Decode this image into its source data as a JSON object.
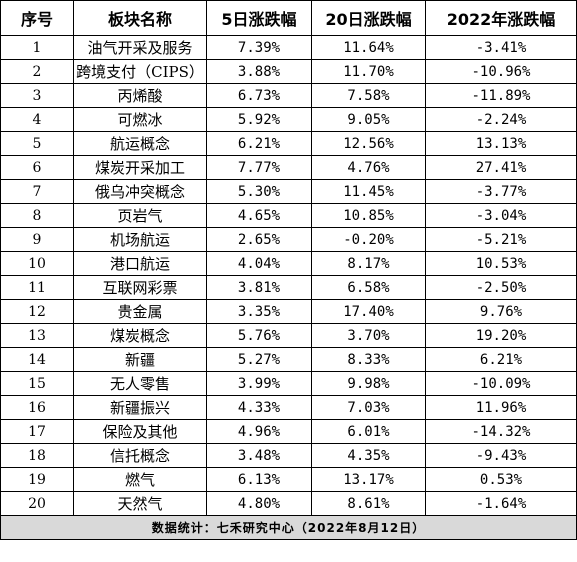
{
  "headers": [
    "序号",
    "板块名称",
    "5日涨跌幅",
    "20日涨跌幅",
    "2022年涨跌幅"
  ],
  "rows": [
    [
      "1",
      "油气开采及服务",
      "7.39%",
      "11.64%",
      "-3.41%"
    ],
    [
      "2",
      "跨境支付（CIPS）",
      "3.88%",
      "11.70%",
      "-10.96%"
    ],
    [
      "3",
      "丙烯酸",
      "6.73%",
      "7.58%",
      "-11.89%"
    ],
    [
      "4",
      "可燃冰",
      "5.92%",
      "9.05%",
      "-2.24%"
    ],
    [
      "5",
      "航运概念",
      "6.21%",
      "12.56%",
      "13.13%"
    ],
    [
      "6",
      "煤炭开采加工",
      "7.77%",
      "4.76%",
      "27.41%"
    ],
    [
      "7",
      "俄乌冲突概念",
      "5.30%",
      "11.45%",
      "-3.77%"
    ],
    [
      "8",
      "页岩气",
      "4.65%",
      "10.85%",
      "-3.04%"
    ],
    [
      "9",
      "机场航运",
      "2.65%",
      "-0.20%",
      "-5.21%"
    ],
    [
      "10",
      "港口航运",
      "4.04%",
      "8.17%",
      "10.53%"
    ],
    [
      "11",
      "互联网彩票",
      "3.81%",
      "6.58%",
      "-2.50%"
    ],
    [
      "12",
      "贵金属",
      "3.35%",
      "17.40%",
      "9.76%"
    ],
    [
      "13",
      "煤炭概念",
      "5.76%",
      "3.70%",
      "19.20%"
    ],
    [
      "14",
      "新疆",
      "5.27%",
      "8.33%",
      "6.21%"
    ],
    [
      "15",
      "无人零售",
      "3.99%",
      "9.98%",
      "-10.09%"
    ],
    [
      "16",
      "新疆振兴",
      "4.33%",
      "7.03%",
      "11.96%"
    ],
    [
      "17",
      "保险及其他",
      "4.96%",
      "6.01%",
      "-14.32%"
    ],
    [
      "18",
      "信托概念",
      "3.48%",
      "4.35%",
      "-9.43%"
    ],
    [
      "19",
      "燃气",
      "6.13%",
      "13.17%",
      "0.53%"
    ],
    [
      "20",
      "天然气",
      "4.80%",
      "8.61%",
      "-1.64%"
    ]
  ],
  "footer": "数据统计：七禾研究中心（2022年8月12日）"
}
